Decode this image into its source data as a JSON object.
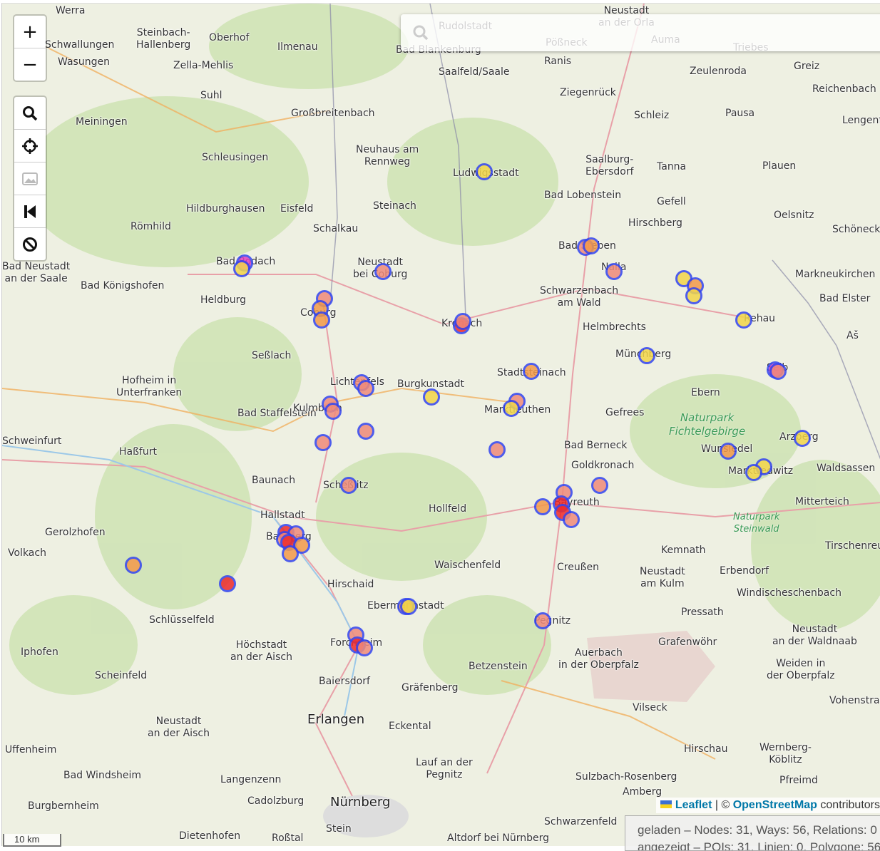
{
  "search": {
    "placeholder": "",
    "icon": "search-icon"
  },
  "zoom_controls": {
    "zoom_in": "+",
    "zoom_out": "−"
  },
  "toolbar": [
    {
      "icon": "search-icon",
      "label": "zoom-to-data"
    },
    {
      "icon": "crosshair-icon",
      "label": "locate"
    },
    {
      "icon": "image-icon",
      "label": "export-image"
    },
    {
      "icon": "skip-back-icon",
      "label": "first"
    },
    {
      "icon": "ban-icon",
      "label": "hide"
    }
  ],
  "attribution": {
    "flag": "ukraine-flag",
    "leaflet": "Leaflet",
    "sep": "| ©",
    "osm": "OpenStreetMap",
    "suffix": "contributors"
  },
  "status": {
    "line1": "geladen – Nodes: 31, Ways: 56, Relations: 0",
    "line2": "angezeigt – POIs: 31, Linien: 0, Polygone: 56"
  },
  "scale": {
    "label": "10 km"
  },
  "marker_colors": {
    "stroke": "#3344ee",
    "yellow": "#f2d64a",
    "orange": "#f39a4a",
    "salmon": "#f08a7a",
    "red": "#ee2a2a",
    "magenta": "#e040c0"
  },
  "places": [
    "Werra",
    "Steinbach-Hallenberg",
    "Oberhof",
    "Schwallungen",
    "Wasungen",
    "Zella-Mehlis",
    "Ilmenau",
    "Rudolstadt",
    "Bad Blankenburg",
    "Saalfeld/Saale",
    "Pößneck",
    "Neustadt an der Orla",
    "Auma",
    "Triebes",
    "Ranis",
    "Zeulenroda",
    "Greiz",
    "Reichenbach",
    "Suhl",
    "Meiningen",
    "Großbreitenbach",
    "Ziegenrück",
    "Schleiz",
    "Pausa",
    "Lengenfeld",
    "Neuhaus am Rennweg",
    "Schleusingen",
    "Ludwigsstadt",
    "Saalburg-Ebersdorf",
    "Tanna",
    "Plauen",
    "Hildburghausen",
    "Eisfeld",
    "Steinach",
    "Bad Lobenstein",
    "Gefell",
    "Oelsnitz",
    "Römhild",
    "Schalkau",
    "Hirschberg",
    "Schöneck",
    "Bad Rodach",
    "Neustadt bei Coburg",
    "Bad Steben",
    "Naila",
    "Markneukirchen",
    "Bad Neustadt an der Saale",
    "Bad Königshofen",
    "Heldburg",
    "Coburg",
    "Schwarzenbach am Wald",
    "Bad Elster",
    "Kronach",
    "Helmbrechts",
    "Rehau",
    "Aš",
    "Seßlach",
    "Münchberg",
    "Hofheim in Unterfranken",
    "Lichtenfels",
    "Burgkunstadt",
    "Stadtsteinach",
    "Selb",
    "Ebern",
    "Bad Staffelstein",
    "Kulmbach",
    "Marktleuthen",
    "Gefrees",
    "Schweinfurt",
    "Haßfurt",
    "Bad Berneck",
    "Wunsiedel",
    "Arzberg",
    "Goldkronach",
    "Marktredwitz",
    "Waldsassen",
    "Baunach",
    "Scheßlitz",
    "Hallstadt",
    "Hollfeld",
    "Bayreuth",
    "Mitterteich",
    "Gerolzhofen",
    "Volkach",
    "Bamberg",
    "Kemnath",
    "Tirschenreuth",
    "Waischenfeld",
    "Creußen",
    "Neustadt am Kulm",
    "Erbendorf",
    "Hirschaid",
    "Windischeschenbach",
    "Schlüsselfeld",
    "Ebermannstadt",
    "Pegnitz",
    "Pressath",
    "Höchstadt an der Aisch",
    "Forchheim",
    "Auerbach in der Oberpfalz",
    "Grafenwöhr",
    "Neustadt an der Waldnaab",
    "Iphofen",
    "Betzenstein",
    "Weiden in der Oberpfalz",
    "Scheinfeld",
    "Baiersdorf",
    "Gräfenberg",
    "Vilseck",
    "Vohenstrauß",
    "Neustadt an der Aisch",
    "Erlangen",
    "Eckental",
    "Uffenheim",
    "Hirschau",
    "Wernberg-Köblitz",
    "Lauf an der Pegnitz",
    "Bad Windsheim",
    "Langenzenn",
    "Sulzbach-Rosenberg",
    "Pfreimd",
    "Burgbernheim",
    "Cadolzburg",
    "Nürnberg",
    "Dietenhofen",
    "Stein",
    "Roßtal",
    "Altdorf bei Nürnberg",
    "Amberg",
    "Schwarzenfeld"
  ],
  "parks": [
    "Naturpark Fichtelgebirge",
    "Naturpark Steinwald"
  ]
}
